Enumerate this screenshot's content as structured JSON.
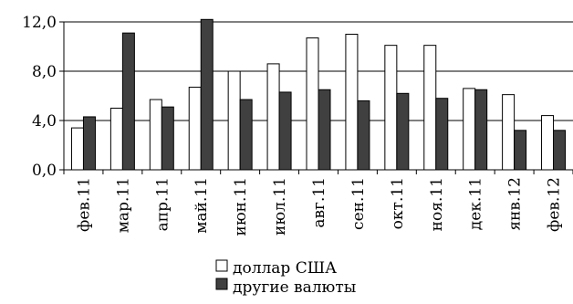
{
  "chart_data": {
    "type": "bar",
    "categories": [
      "фев.11",
      "мар.11",
      "апр.11",
      "май.11",
      "июн.11",
      "июл.11",
      "авг.11",
      "сен.11",
      "окт.11",
      "ноя.11",
      "дек.11",
      "янв.12",
      "фев.12"
    ],
    "series": [
      {
        "name": "доллар США",
        "color": "#ffffff",
        "values": [
          3.4,
          5.0,
          5.7,
          6.7,
          8.0,
          8.6,
          10.7,
          11.0,
          10.1,
          10.1,
          6.6,
          6.1,
          4.4
        ]
      },
      {
        "name": "другие валюты",
        "color": "#404040",
        "values": [
          4.3,
          11.1,
          5.1,
          12.2,
          5.7,
          6.3,
          6.5,
          5.6,
          6.2,
          5.8,
          6.5,
          3.2,
          3.2
        ]
      }
    ],
    "ylim": [
      0,
      12
    ],
    "yticks": [
      "0,0",
      "4,0",
      "8,0",
      "12,0"
    ],
    "ytick_values": [
      0,
      4,
      8,
      12
    ],
    "grid": true,
    "legend_position": "bottom"
  }
}
